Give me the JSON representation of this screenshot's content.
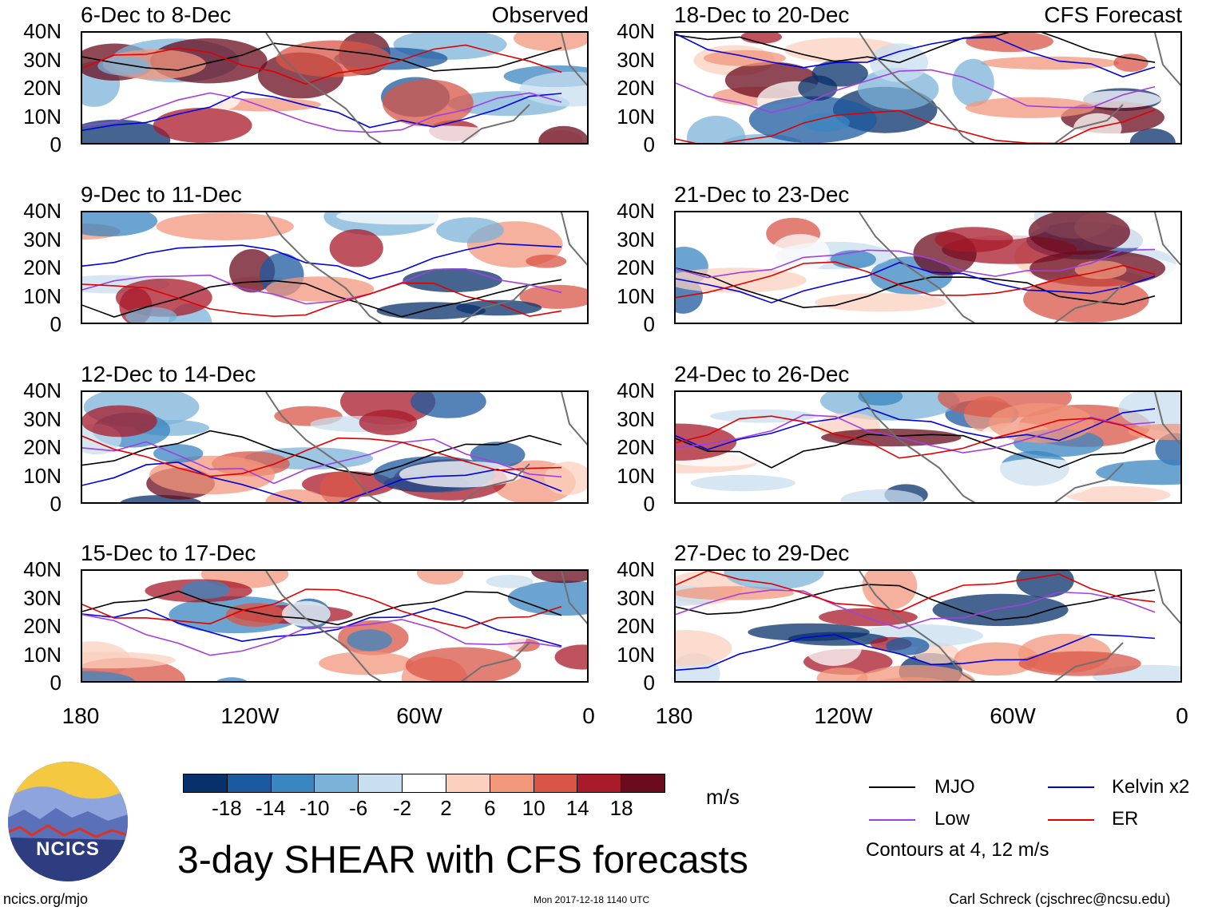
{
  "title": "3-day SHEAR with CFS forecasts",
  "observed_label": "Observed",
  "forecast_label": "CFS Forecast",
  "lat_labels": [
    "40N",
    "30N",
    "20N",
    "10N",
    "0"
  ],
  "lon_labels": [
    "180",
    "120W",
    "60W",
    "0"
  ],
  "panels": [
    {
      "title": "6-Dec to 8-Dec",
      "type": "observed"
    },
    {
      "title": "9-Dec to 11-Dec",
      "type": "observed"
    },
    {
      "title": "12-Dec to 14-Dec",
      "type": "observed"
    },
    {
      "title": "15-Dec to 17-Dec",
      "type": "observed"
    },
    {
      "title": "18-Dec to 20-Dec",
      "type": "forecast"
    },
    {
      "title": "21-Dec to 23-Dec",
      "type": "forecast"
    },
    {
      "title": "24-Dec to 26-Dec",
      "type": "forecast"
    },
    {
      "title": "27-Dec to 29-Dec",
      "type": "forecast"
    }
  ],
  "colorbar": {
    "labels": [
      "-18",
      "-14",
      "-10",
      "-6",
      "-2",
      "2",
      "6",
      "10",
      "14",
      "18"
    ],
    "colors": [
      "#08306b",
      "#1c5aa0",
      "#3a86c0",
      "#7bb3d8",
      "#c8dfef",
      "#ffffff",
      "#fbd0bd",
      "#f1977c",
      "#d95547",
      "#a81a2a",
      "#6a0b1e"
    ],
    "units": "m/s"
  },
  "legend": {
    "items": [
      {
        "label": "MJO",
        "color": "#000000"
      },
      {
        "label": "Kelvin x2",
        "color": "#0000e0"
      },
      {
        "label": "Low",
        "color": "#a040e0"
      },
      {
        "label": "ER",
        "color": "#e00000"
      }
    ],
    "note": "Contours at 4, 12 m/s"
  },
  "logo_text": "NCICS",
  "footer": {
    "left": "ncics.org/mjo",
    "center": "Mon 2017-12-18 1140 UTC",
    "right": "Carl Schreck (cjschrec@ncsu.edu)"
  }
}
